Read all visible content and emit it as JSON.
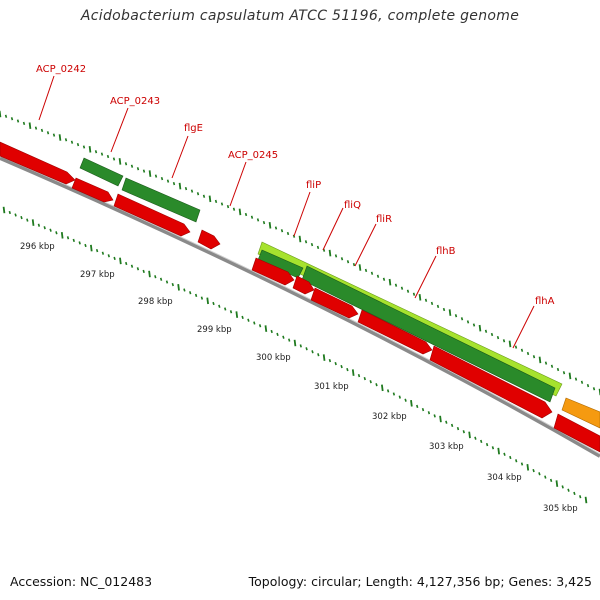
{
  "title": "Acidobacterium capsulatum ATCC 51196, complete genome",
  "footer": {
    "accession": "Accession: NC_012483",
    "summary": "Topology: circular; Length: 4,127,356 bp; Genes: 3,425"
  },
  "colors": {
    "cds_red": "#e00000",
    "cds_dark_green": "#2a8a2a",
    "cds_light_green": "#a6e22e",
    "cds_orange": "#f59a10",
    "backbone": "#888888",
    "tick_green": "#1f7a1f",
    "label_red": "#cc0000"
  },
  "gene_labels": [
    "ACP_0242",
    "ACP_0243",
    "flgE",
    "ACP_0245",
    "fliP",
    "fliQ",
    "fliR",
    "flhB",
    "flhA"
  ],
  "scale_labels": [
    "296 kbp",
    "297 kbp",
    "298 kbp",
    "299 kbp",
    "300 kbp",
    "301 kbp",
    "302 kbp",
    "303 kbp",
    "304 kbp",
    "305 kbp"
  ]
}
